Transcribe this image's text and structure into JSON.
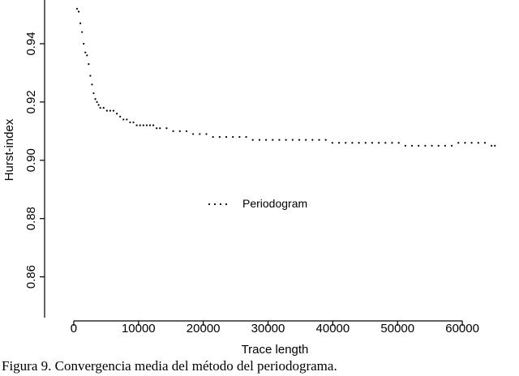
{
  "caption": "Figura 9. Convergencia media del método del periodograma.",
  "chart_data": {
    "type": "scatter",
    "title": "",
    "xlabel": "Trace length",
    "ylabel": "Hurst-index",
    "xlim": [
      -4500,
      68500
    ],
    "ylim": [
      0.846,
      0.955
    ],
    "xticks": [
      0,
      10000,
      20000,
      30000,
      40000,
      50000,
      60000
    ],
    "xtick_labels": [
      "0",
      "10000",
      "20000",
      "30000",
      "40000",
      "50000",
      "60000"
    ],
    "yticks": [
      0.86,
      0.88,
      0.9,
      0.92,
      0.94
    ],
    "ytick_labels": [
      "0.86",
      "0.88",
      "0.90",
      "0.92",
      "0.94"
    ],
    "grid": false,
    "legend_position": "center",
    "series": [
      {
        "name": "Periodogram",
        "x": [
          512,
          768,
          1024,
          1280,
          1536,
          1792,
          2048,
          2304,
          2560,
          2816,
          3072,
          3328,
          3584,
          3840,
          4096,
          4608,
          5120,
          5632,
          6144,
          6656,
          7168,
          7680,
          8192,
          8704,
          9216,
          9728,
          10240,
          10752,
          11264,
          11776,
          12288,
          12800,
          13312,
          14336,
          15360,
          16384,
          17408,
          18432,
          19456,
          20480,
          21504,
          22528,
          23552,
          24576,
          25600,
          26624,
          27648,
          28672,
          29696,
          30720,
          31744,
          32768,
          33792,
          34816,
          35840,
          36864,
          37888,
          38912,
          39936,
          40960,
          41984,
          43008,
          44032,
          45056,
          46080,
          47104,
          48128,
          49152,
          50176,
          51200,
          52224,
          53248,
          54272,
          55296,
          56320,
          57344,
          58368,
          59392,
          60416,
          61440,
          62464,
          63488,
          64512,
          65024
        ],
        "y": [
          0.952,
          0.951,
          0.947,
          0.944,
          0.94,
          0.937,
          0.936,
          0.933,
          0.929,
          0.926,
          0.923,
          0.921,
          0.92,
          0.919,
          0.918,
          0.918,
          0.917,
          0.917,
          0.917,
          0.916,
          0.915,
          0.914,
          0.914,
          0.913,
          0.913,
          0.912,
          0.912,
          0.912,
          0.912,
          0.912,
          0.912,
          0.911,
          0.911,
          0.911,
          0.91,
          0.91,
          0.91,
          0.909,
          0.909,
          0.909,
          0.908,
          0.908,
          0.908,
          0.908,
          0.908,
          0.908,
          0.907,
          0.907,
          0.907,
          0.907,
          0.907,
          0.907,
          0.907,
          0.907,
          0.907,
          0.907,
          0.907,
          0.907,
          0.906,
          0.906,
          0.906,
          0.906,
          0.906,
          0.906,
          0.906,
          0.906,
          0.906,
          0.906,
          0.906,
          0.905,
          0.905,
          0.905,
          0.905,
          0.905,
          0.905,
          0.905,
          0.905,
          0.906,
          0.906,
          0.906,
          0.906,
          0.906,
          0.905,
          0.905
        ]
      }
    ]
  },
  "colors": {
    "points": "#000000",
    "axes": "#000000"
  }
}
